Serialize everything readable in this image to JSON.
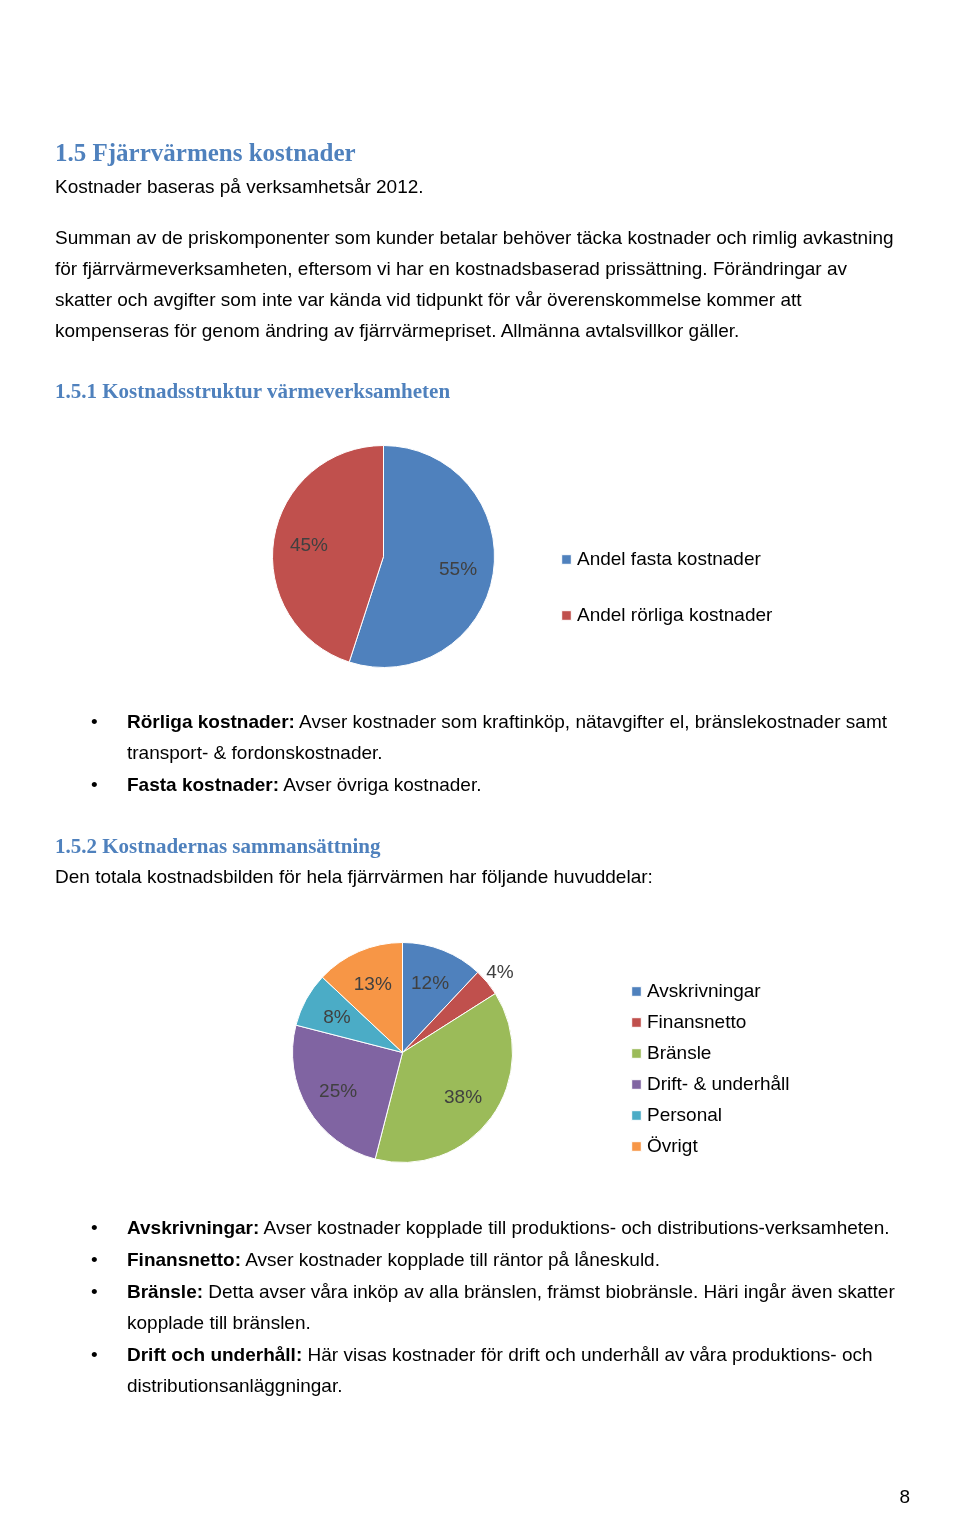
{
  "chart_data": [
    {
      "type": "other",
      "title": "1.5 Fjärrvärmens kostnader",
      "subtitle": "Kostnader baseras på verksamhetsår 2012.",
      "annotations": [
        "Summan av de priskomponenter som kunder betalar behöver täcka kostnader och rimlig avkastning för fjärrvärmeverksamheten, eftersom vi har en kostnadsbaserad prissättning. Förändringar av skatter och avgifter som inte var kända vid tidpunkt för vår överenskommelse kommer att kompenseras för genom ändring av fjärrvärmepriset. Allmänna avtalsvillkor gäller."
      ]
    },
    {
      "type": "pie",
      "title": "1.5.1 Kostnadsstruktur värmeverksamheten",
      "categories": [
        "Andel fasta kostnader",
        "Andel rörliga kostnader"
      ],
      "values": [
        55,
        45
      ],
      "colors": [
        "#4f81bd",
        "#c0504d"
      ],
      "value_labels": [
        "55%",
        "45%"
      ],
      "legend": "right",
      "annotations": [
        "• Rörliga kostnader: Avser kostnader som kraftinköp, nätavgifter el, bränslekostnader samt transport- & fordonskostnader.",
        "• Fasta kostnader: Avser övriga kostnader."
      ]
    },
    {
      "type": "pie",
      "title": "1.5.2 Kostnadernas sammansättning",
      "subtitle": "Den totala kostnadsbilden för hela fjärrvärmen har följande huvuddelar:",
      "categories": [
        "Avskrivningar",
        "Finansnetto",
        "Bränsle",
        "Drift- & underhåll",
        "Personal",
        "Övrigt"
      ],
      "values": [
        12,
        4,
        38,
        25,
        8,
        13
      ],
      "colors": [
        "#4f81bd",
        "#c0504d",
        "#9bbb59",
        "#8064a2",
        "#4bacc6",
        "#f79646"
      ],
      "value_labels": [
        "12%",
        "4%",
        "38%",
        "25%",
        "8%",
        "13%"
      ],
      "legend": "right",
      "annotations": [
        "• Avskrivningar: Avser kostnader kopplade till produktions- och distributions-verksamheten.",
        "• Finansnetto: Avser kostnader kopplade till räntor på låneskuld.",
        "• Bränsle: Detta avser våra inköp av alla bränslen, främst biobränsle. Häri ingår även skatter kopplade till bränslen.",
        "• Drift och underhåll: Här visas kostnader för drift och underhåll av våra produktions- och distributionsanläggningar.",
        "8"
      ]
    }
  ]
}
